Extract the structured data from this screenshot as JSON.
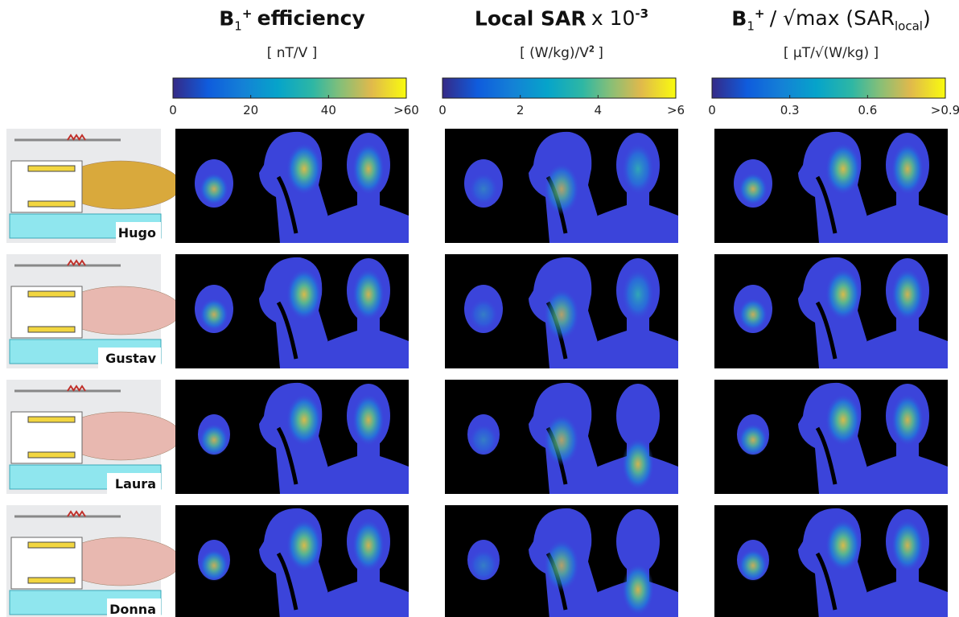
{
  "columns": [
    {
      "title": [
        {
          "text": "B",
          "style": "bold"
        },
        {
          "text": "1",
          "style": "sub"
        },
        {
          "text": "+",
          "style": "sup"
        },
        {
          "text": "efficiency",
          "style": "bold"
        }
      ],
      "unit": [
        {
          "text": "[ nT/V ]",
          "style": "normal"
        }
      ],
      "colorbar": {
        "lim": [
          0,
          60
        ],
        "ticks": [
          0,
          20,
          40,
          {
            "value": 60,
            "label": ">60"
          }
        ]
      }
    },
    {
      "title": [
        {
          "text": "Local SAR",
          "style": "bold"
        },
        {
          "text": "x 10",
          "style": "normal"
        },
        {
          "text": "-3",
          "style": "sup"
        }
      ],
      "unit": [
        {
          "text": "[ (W/kg)/V",
          "style": "normal"
        },
        {
          "text": "2",
          "style": "sup"
        },
        {
          "text": "]",
          "style": "normal"
        }
      ],
      "colorbar": {
        "lim": [
          0,
          6
        ],
        "ticks": [
          0,
          2,
          4,
          {
            "value": 6,
            "label": ">6"
          }
        ]
      }
    },
    {
      "title": [
        {
          "text": "B",
          "style": "bold"
        },
        {
          "text": "1",
          "style": "sub"
        },
        {
          "text": "+",
          "style": "sup"
        },
        {
          "text": "/ √max (SAR",
          "style": "normal"
        },
        {
          "text": "local",
          "style": "sub"
        },
        {
          "text": ")",
          "style": "normal"
        }
      ],
      "unit": [
        {
          "text": "[ μT/√(W/kg) ]",
          "style": "normal"
        }
      ],
      "colorbar": {
        "lim": [
          0,
          0.9
        ],
        "ticks": [
          0,
          0.3,
          0.6,
          {
            "value": 0.9,
            "label": ">0.9"
          }
        ]
      }
    }
  ],
  "rows": [
    {
      "name": "Hugo",
      "body_color": "#d9a93c"
    },
    {
      "name": "Gustav",
      "body_color": "#e8b8b0"
    },
    {
      "name": "Laura",
      "body_color": "#e8b8b0"
    },
    {
      "name": "Donna",
      "body_color": "#e8b8b0"
    }
  ]
}
